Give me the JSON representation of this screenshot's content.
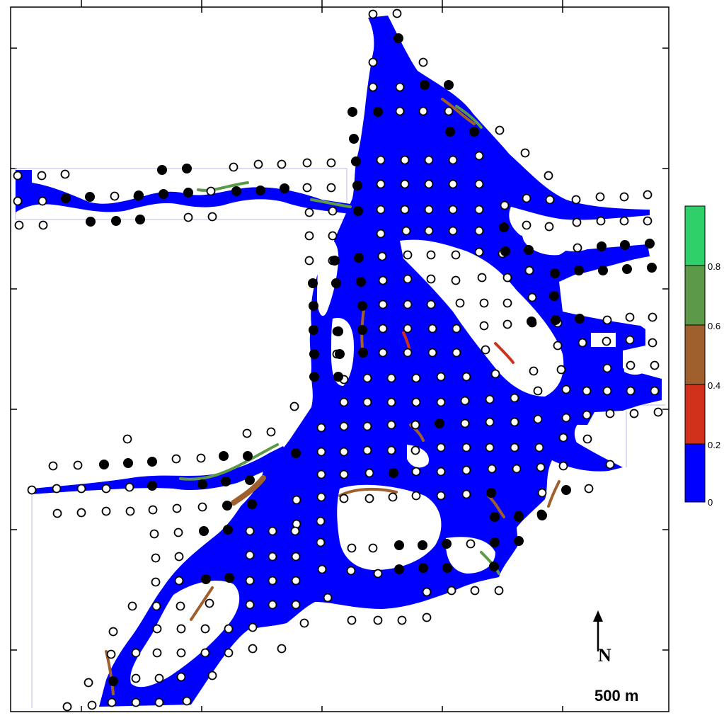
{
  "map": {
    "water_color": "#0000ff",
    "survey_point_open_color": "#ffffff",
    "survey_point_filled_color": "#000000",
    "point_stroke_color": "#000000"
  },
  "legend": {
    "ticks": [
      "0",
      "0.2",
      "0.4",
      "0.6",
      "0.8"
    ],
    "bands": [
      {
        "from": 0,
        "to": 0.2,
        "color": "#0000ff"
      },
      {
        "from": 0.2,
        "to": 0.4,
        "color": "#d1301b"
      },
      {
        "from": 0.4,
        "to": 0.6,
        "color": "#a0602e"
      },
      {
        "from": 0.6,
        "to": 0.8,
        "color": "#5c9a4a"
      },
      {
        "from": 0.8,
        "to": 1.0,
        "color": "#2fcf6a"
      }
    ]
  },
  "north_arrow": {
    "label": "N",
    "icon": "north-arrow-icon"
  },
  "scale": {
    "label": "500 m"
  }
}
